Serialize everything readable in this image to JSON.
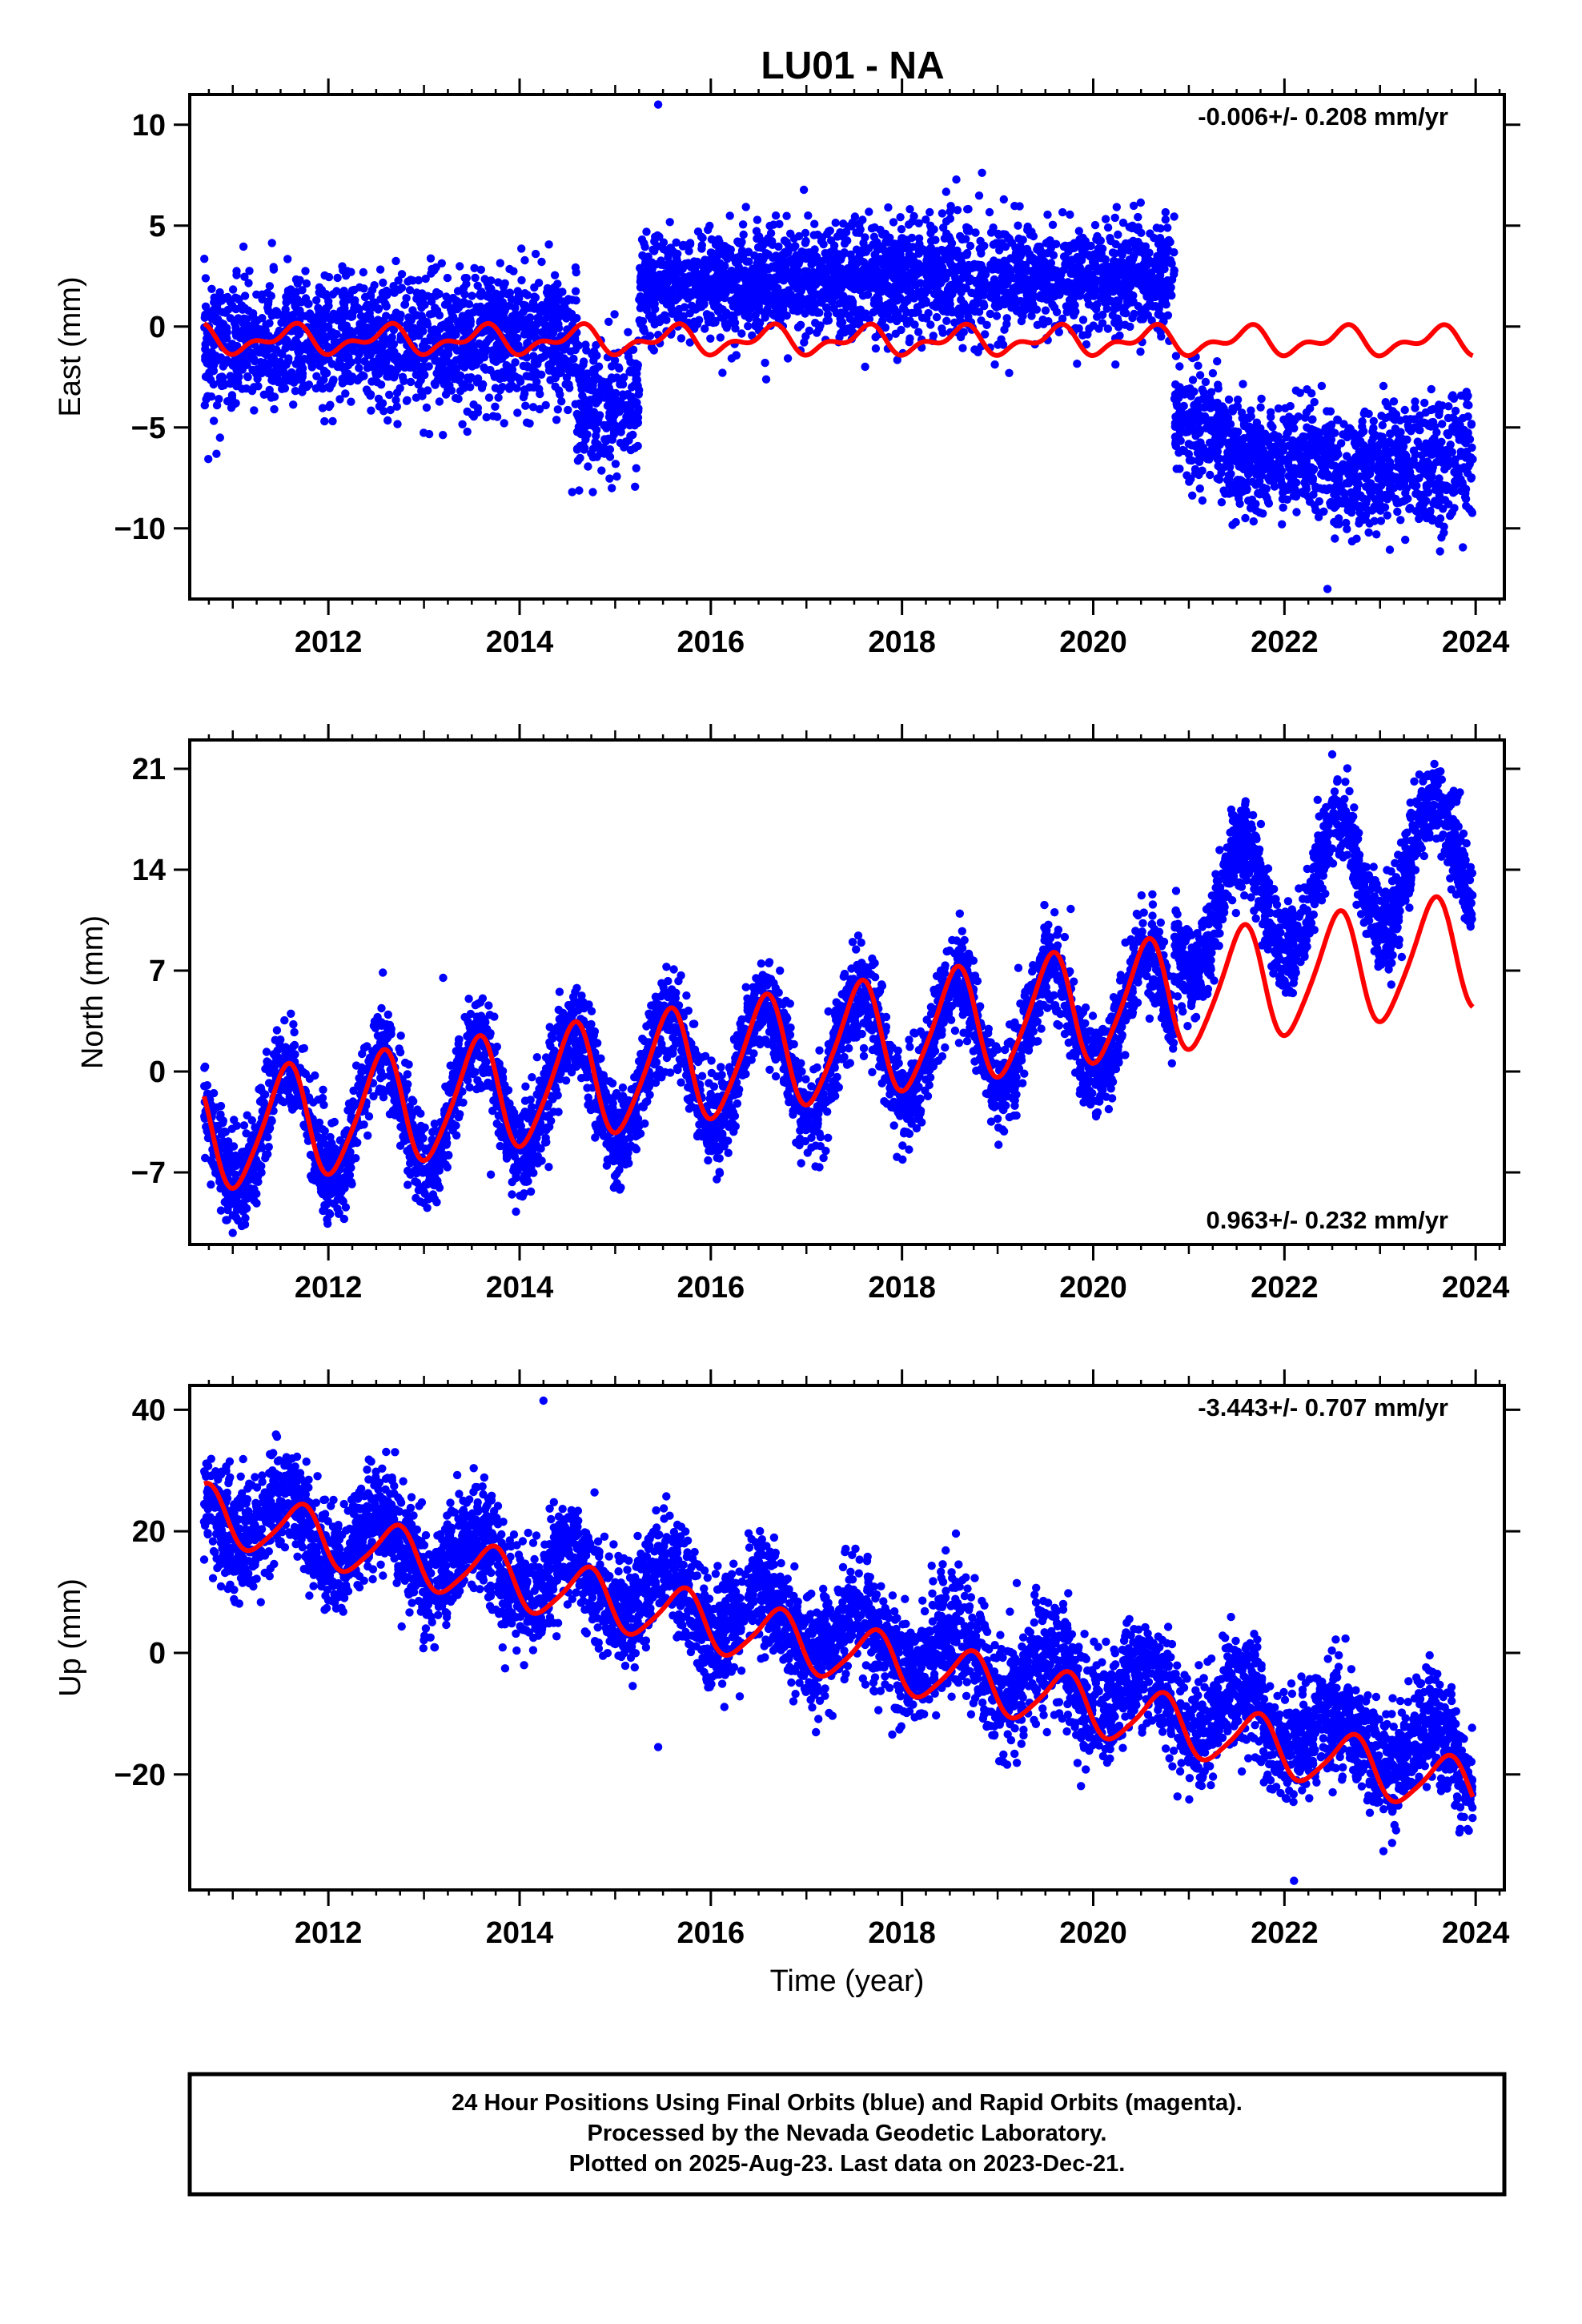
{
  "title": "LU01 - NA",
  "colors": {
    "final_orbits": "#0000ff",
    "model": "#ff0000",
    "frame": "#000000",
    "background": "#ffffff"
  },
  "chart_data": [
    {
      "type": "scatter",
      "xlabel": "",
      "ylabel": "East (mm)",
      "xlim": [
        2010.55,
        2024.3
      ],
      "ylim": [
        -13.5,
        11.5
      ],
      "xticks": [
        2012,
        2014,
        2016,
        2018,
        2020,
        2022,
        2024
      ],
      "xtick_labels": [
        "2012",
        "2014",
        "2016",
        "2018",
        "2020",
        "2022",
        "2024"
      ],
      "yticks": [
        10,
        5,
        0,
        -5,
        -10
      ],
      "ytick_labels": [
        "10",
        "5",
        "0",
        "−5",
        "−10"
      ],
      "velocity_annotation": "-0.006+/- 0.208 mm/yr",
      "annotation_position": "top-right",
      "data_span": [
        2010.7,
        2023.97
      ],
      "series": [
        {
          "kind": "points",
          "color": "#0000ff",
          "note_segments": [
            {
              "x": [
                2010.7,
                2014.6
              ],
              "y": [
                -1.0,
                -0.5
              ],
              "scatter": 1.6
            },
            {
              "x": [
                2014.6,
                2015.25
              ],
              "y": [
                -4.0,
                -4.0
              ],
              "scatter": 1.7
            },
            {
              "x": [
                2015.25,
                2020.85
              ],
              "y": [
                2.0,
                2.5
              ],
              "scatter": 1.4
            },
            {
              "x": [
                2020.85,
                2021.4
              ],
              "y": [
                -4.5,
                -5.5
              ],
              "scatter": 1.3
            },
            {
              "x": [
                2021.4,
                2022.5
              ],
              "y": [
                -6.5,
                -6.5
              ],
              "scatter": 1.3
            },
            {
              "x": [
                2022.5,
                2023.97
              ],
              "y": [
                -7.5,
                -6.5
              ],
              "scatter": 1.5
            }
          ],
          "outliers": [
            [
              2015.45,
              11.0
            ],
            [
              2022.45,
              -13.0
            ],
            [
              2014.55,
              -8.2
            ]
          ]
        },
        {
          "kind": "model",
          "color": "#ff0000",
          "model": {
            "offset": -0.65,
            "trend": -0.006,
            "annual": 0.55,
            "annual_phase_year": 0.6,
            "semiannual": 0.35
          }
        }
      ]
    },
    {
      "type": "scatter",
      "xlabel": "",
      "ylabel": "North (mm)",
      "xlim": [
        2010.55,
        2024.3
      ],
      "ylim": [
        -12,
        23
      ],
      "xticks": [
        2012,
        2014,
        2016,
        2018,
        2020,
        2022,
        2024
      ],
      "xtick_labels": [
        "2012",
        "2014",
        "2016",
        "2018",
        "2020",
        "2022",
        "2024"
      ],
      "yticks": [
        21,
        14,
        7,
        0,
        -7
      ],
      "ytick_labels": [
        "21",
        "14",
        "7",
        "0",
        "−7"
      ],
      "velocity_annotation": "0.963+/- 0.232 mm/yr",
      "annotation_position": "bottom-right",
      "data_span": [
        2010.7,
        2023.97
      ],
      "series": [
        {
          "kind": "points",
          "color": "#0000ff",
          "note_segments": [
            {
              "x": [
                2010.7,
                2020.85
              ],
              "y": [
                -4.5,
                4.5
              ],
              "annual": 4.0,
              "scatter": 1.6
            },
            {
              "x": [
                2020.85,
                2023.97
              ],
              "y": [
                10.5,
                15.5
              ],
              "annual": 4.0,
              "scatter": 1.5
            }
          ],
          "outliers": [
            [
              2013.2,
              6.5
            ],
            [
              2022.5,
              22.0
            ],
            [
              2011.0,
              -11.2
            ]
          ]
        },
        {
          "kind": "model",
          "color": "#ff0000",
          "model": {
            "offset": -4.5,
            "trend": 0.963,
            "annual": 3.9,
            "annual_phase_year": 0.55,
            "semiannual": 0.6
          }
        }
      ]
    },
    {
      "type": "scatter",
      "xlabel": "Time (year)",
      "ylabel": "Up (mm)",
      "xlim": [
        2010.55,
        2024.3
      ],
      "ylim": [
        -39,
        44
      ],
      "xticks": [
        2012,
        2014,
        2016,
        2018,
        2020,
        2022,
        2024
      ],
      "xtick_labels": [
        "2012",
        "2014",
        "2016",
        "2018",
        "2020",
        "2022",
        "2024"
      ],
      "yticks": [
        40,
        20,
        0,
        -20
      ],
      "ytick_labels": [
        "40",
        "20",
        "0",
        "−20"
      ],
      "velocity_annotation": "-3.443+/- 0.707 mm/yr",
      "annotation_position": "top-right",
      "data_span": [
        2010.7,
        2023.97
      ],
      "series": [
        {
          "kind": "points",
          "color": "#0000ff",
          "note_segments": [
            {
              "x": [
                2010.7,
                2023.97
              ],
              "y": [
                24.0,
                -18.0
              ],
              "annual": 4.5,
              "scatter": 4.5
            }
          ],
          "outliers": [
            [
              2014.25,
              41.5
            ],
            [
              2022.1,
              -37.5
            ],
            [
              2015.45,
              -15.5
            ]
          ]
        },
        {
          "kind": "model",
          "color": "#ff0000",
          "model": {
            "offset": 23.0,
            "trend": -3.443,
            "annual": 4.6,
            "annual_phase_year": 0.7,
            "semiannual": 0.8
          }
        }
      ]
    }
  ],
  "footer": {
    "line1": "24 Hour Positions Using Final Orbits (blue) and Rapid Orbits (magenta).",
    "line2": "Processed by the Nevada Geodetic Laboratory.",
    "line3": "Plotted on 2025-Aug-23. Last data on 2023-Dec-21."
  }
}
